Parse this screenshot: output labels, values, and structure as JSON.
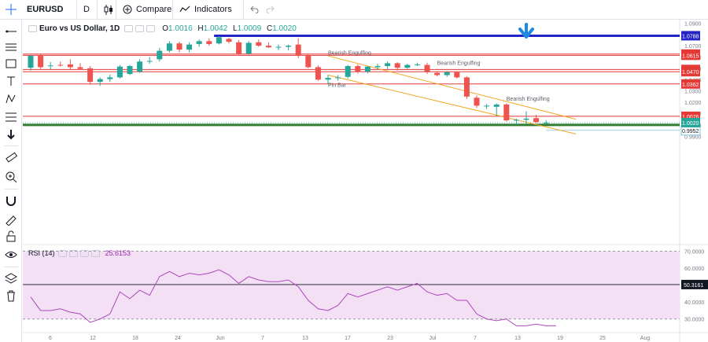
{
  "toolbar": {
    "symbol": "EURUSD",
    "interval": "D",
    "compare_label": "Compare",
    "indicators_label": "Indicators"
  },
  "legend": {
    "title": "Euro vs US Dollar, 1D",
    "o_label": "O",
    "o": "1.0016",
    "h_label": "H",
    "h": "1.0042",
    "l_label": "L",
    "l": "1.0009",
    "c_label": "C",
    "c": "1.0020"
  },
  "rsi_legend": {
    "name": "RSI (14)",
    "value": "25.6153"
  },
  "colors": {
    "up": "#26a69a",
    "down": "#ef5350",
    "hline": "#e53935",
    "support": "#2e7d32",
    "resistance": "#2323c8",
    "channel": "#f5a623",
    "rsi": "#ab47bc",
    "rsi_band": "#f3e0f5",
    "arrow": "#1e88e5"
  },
  "chart_data": [
    {
      "type": "candlestick",
      "title": "Euro vs US Dollar, 1D",
      "y_range": [
        0.895,
        1.093
      ],
      "y_ticks": [
        "1.0900",
        "1.0700",
        "1.0600",
        "1.0500",
        "1.0400",
        "1.0300",
        "1.0200",
        "1.0100",
        "1.0000",
        "0.9900"
      ],
      "x_ticks": [
        "6",
        "12",
        "18",
        "24",
        "Jun",
        "7",
        "13",
        "17",
        "23",
        "Jul",
        "7",
        "13",
        "19",
        "25",
        "Aug"
      ],
      "candles": [
        {
          "o": 1.0505,
          "h": 1.062,
          "l": 1.048,
          "c": 1.061
        },
        {
          "o": 1.061,
          "h": 1.063,
          "l": 1.0495,
          "c": 1.051
        },
        {
          "o": 1.052,
          "h": 1.0555,
          "l": 1.049,
          "c": 1.0525
        },
        {
          "o": 1.053,
          "h": 1.056,
          "l": 1.0515,
          "c": 1.0525
        },
        {
          "o": 1.0535,
          "h": 1.058,
          "l": 1.049,
          "c": 1.051
        },
        {
          "o": 1.051,
          "h": 1.0545,
          "l": 1.049,
          "c": 1.0495
        },
        {
          "o": 1.05,
          "h": 1.052,
          "l": 1.0355,
          "c": 1.038
        },
        {
          "o": 1.038,
          "h": 1.042,
          "l": 1.0345,
          "c": 1.0405
        },
        {
          "o": 1.0405,
          "h": 1.0445,
          "l": 1.038,
          "c": 1.042
        },
        {
          "o": 1.042,
          "h": 1.053,
          "l": 1.041,
          "c": 1.0515
        },
        {
          "o": 1.045,
          "h": 1.053,
          "l": 1.044,
          "c": 1.052
        },
        {
          "o": 1.047,
          "h": 1.058,
          "l": 1.046,
          "c": 1.056
        },
        {
          "o": 1.056,
          "h": 1.06,
          "l": 1.054,
          "c": 1.0565
        },
        {
          "o": 1.058,
          "h": 1.068,
          "l": 1.056,
          "c": 1.0655
        },
        {
          "o": 1.0655,
          "h": 1.074,
          "l": 1.064,
          "c": 1.072
        },
        {
          "o": 1.072,
          "h": 1.0735,
          "l": 1.064,
          "c": 1.0665
        },
        {
          "o": 1.0665,
          "h": 1.073,
          "l": 1.064,
          "c": 1.071
        },
        {
          "o": 1.0715,
          "h": 1.0755,
          "l": 1.069,
          "c": 1.074
        },
        {
          "o": 1.074,
          "h": 1.0765,
          "l": 1.07,
          "c": 1.0715
        },
        {
          "o": 1.072,
          "h": 1.0785,
          "l": 1.071,
          "c": 1.0775
        },
        {
          "o": 1.076,
          "h": 1.077,
          "l": 1.072,
          "c": 1.0735
        },
        {
          "o": 1.073,
          "h": 1.075,
          "l": 1.061,
          "c": 1.063
        },
        {
          "o": 1.063,
          "h": 1.074,
          "l": 1.062,
          "c": 1.0725
        },
        {
          "o": 1.073,
          "h": 1.0755,
          "l": 1.069,
          "c": 1.07
        },
        {
          "o": 1.07,
          "h": 1.073,
          "l": 1.068,
          "c": 1.0685
        },
        {
          "o": 1.069,
          "h": 1.071,
          "l": 1.066,
          "c": 1.069
        },
        {
          "o": 1.069,
          "h": 1.071,
          "l": 1.066,
          "c": 1.07
        },
        {
          "o": 1.071,
          "h": 1.0765,
          "l": 1.059,
          "c": 1.061
        },
        {
          "o": 1.061,
          "h": 1.0625,
          "l": 1.05,
          "c": 1.051
        },
        {
          "o": 1.051,
          "h": 1.0525,
          "l": 1.039,
          "c": 1.04
        },
        {
          "o": 1.04,
          "h": 1.044,
          "l": 1.036,
          "c": 1.0415
        },
        {
          "o": 1.0415,
          "h": 1.044,
          "l": 1.039,
          "c": 1.042
        },
        {
          "o": 1.0425,
          "h": 1.053,
          "l": 1.041,
          "c": 1.052
        },
        {
          "o": 1.052,
          "h": 1.0535,
          "l": 1.0455,
          "c": 1.047
        },
        {
          "o": 1.047,
          "h": 1.052,
          "l": 1.0455,
          "c": 1.0515
        },
        {
          "o": 1.051,
          "h": 1.054,
          "l": 1.049,
          "c": 1.052
        },
        {
          "o": 1.052,
          "h": 1.056,
          "l": 1.0495,
          "c": 1.0545
        },
        {
          "o": 1.0545,
          "h": 1.0555,
          "l": 1.048,
          "c": 1.0505
        },
        {
          "o": 1.0505,
          "h": 1.054,
          "l": 1.0495,
          "c": 1.053
        },
        {
          "o": 1.053,
          "h": 1.055,
          "l": 1.052,
          "c": 1.0535
        },
        {
          "o": 1.053,
          "h": 1.055,
          "l": 1.045,
          "c": 1.0465
        },
        {
          "o": 1.046,
          "h": 1.047,
          "l": 1.043,
          "c": 1.044
        },
        {
          "o": 1.044,
          "h": 1.0475,
          "l": 1.0425,
          "c": 1.0465
        },
        {
          "o": 1.0465,
          "h": 1.047,
          "l": 1.041,
          "c": 1.042
        },
        {
          "o": 1.042,
          "h": 1.043,
          "l": 1.023,
          "c": 1.025
        },
        {
          "o": 1.024,
          "h": 1.026,
          "l": 1.015,
          "c": 1.017
        },
        {
          "o": 1.0165,
          "h": 1.0185,
          "l": 1.014,
          "c": 1.017
        },
        {
          "o": 1.016,
          "h": 1.019,
          "l": 1.008,
          "c": 1.018
        },
        {
          "o": 1.018,
          "h": 1.019,
          "l": 1.003,
          "c": 1.004
        },
        {
          "o": 1.004,
          "h": 1.0055,
          "l": 1.0005,
          "c": 1.0045
        },
        {
          "o": 1.0045,
          "h": 1.012,
          "l": 1.001,
          "c": 1.0055
        },
        {
          "o": 1.006,
          "h": 1.009,
          "l": 1.002,
          "c": 1.0025
        },
        {
          "o": 1.0016,
          "h": 1.0042,
          "l": 1.0009,
          "c": 1.002
        }
      ],
      "horizontal_levels": [
        {
          "value": 1.0788,
          "label": "1.0788",
          "kind": "resistance"
        },
        {
          "value": 1.0626,
          "label": "1.0626",
          "kind": "level"
        },
        {
          "value": 1.0615,
          "label": "1.0615",
          "kind": "level"
        },
        {
          "value": 1.049,
          "label": "1.0490",
          "kind": "level"
        },
        {
          "value": 1.047,
          "label": "1.0470",
          "kind": "level"
        },
        {
          "value": 1.0362,
          "label": "1.0362",
          "kind": "level"
        },
        {
          "value": 1.0076,
          "label": "1.0076",
          "kind": "level"
        },
        {
          "value": 1.0,
          "label": "1.0000",
          "kind": "support"
        },
        {
          "value": 0.9952,
          "label": "0.9952",
          "kind": "projection"
        }
      ],
      "last_price": {
        "value": 1.002,
        "label": "1.0020"
      },
      "channel": {
        "upper": [
          [
            30,
            1.061
          ],
          [
            55,
            1.005
          ]
        ],
        "lower": [
          [
            30,
            1.044
          ],
          [
            55,
            0.992
          ]
        ]
      },
      "annotations": [
        {
          "text": "Bearish Engulfing",
          "bar": 30,
          "value": 1.0622
        },
        {
          "text": "Bearish Engulfing",
          "bar": 41,
          "value": 1.053
        },
        {
          "text": "Bearish Engulfing",
          "bar": 48,
          "value": 1.0215
        },
        {
          "text": "Pin Bar",
          "bar": 30,
          "value": 1.0335
        }
      ],
      "arrow": {
        "direction": "down",
        "bar": 50
      }
    },
    {
      "type": "line",
      "title": "RSI (14)",
      "y_range": [
        22,
        73
      ],
      "y_ticks": [
        "70.0000",
        "60.0000",
        "40.0000",
        "30.0000"
      ],
      "bands": {
        "upper": 70,
        "lower": 30
      },
      "level": {
        "value": 50.3161,
        "label": "50.3161"
      },
      "values": [
        43,
        35,
        35,
        36,
        34,
        33,
        28,
        30,
        33,
        46,
        42,
        47,
        44,
        55,
        58,
        55,
        57,
        56,
        57,
        59,
        56,
        51,
        55,
        53,
        52,
        52,
        53,
        49,
        41,
        36,
        35,
        38,
        45,
        43,
        45,
        47,
        49,
        47,
        49,
        51,
        46,
        44,
        45,
        41,
        41,
        33,
        30,
        29,
        30,
        26,
        26,
        27,
        26,
        26
      ]
    }
  ]
}
